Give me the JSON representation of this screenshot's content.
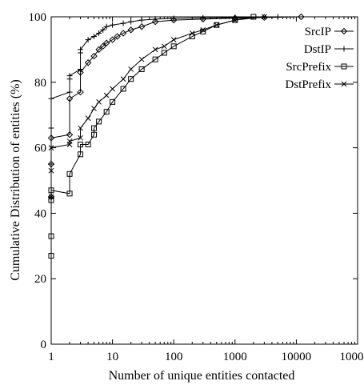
{
  "chart_data": {
    "type": "line",
    "xscale": "log",
    "xlabel": "Number of unique entities contacted",
    "ylabel": "Cumulative Distribution of entities (%)",
    "xlim": [
      1,
      100000
    ],
    "ylim": [
      0,
      100
    ],
    "xticks": [
      1,
      10,
      100,
      1000,
      10000,
      100000
    ],
    "xtick_labels": [
      "1",
      "10",
      "100",
      "1000",
      "10000",
      "100000"
    ],
    "yticks": [
      0,
      20,
      40,
      60,
      80,
      100
    ],
    "ytick_labels": [
      "0",
      "20",
      "40",
      "60",
      "80",
      "100"
    ],
    "grid": false,
    "legend_position": "top-right",
    "series": [
      {
        "name": "SrcIP",
        "marker": "diamond",
        "x": [
          1,
          1,
          1,
          2,
          2,
          3,
          3,
          4,
          5,
          6,
          7,
          8,
          10,
          12,
          15,
          20,
          30,
          50,
          100,
          300,
          1000,
          3000,
          12000
        ],
        "y": [
          45,
          55,
          63,
          64,
          75,
          77,
          83,
          86,
          88,
          90,
          91,
          92,
          93,
          94,
          95,
          96,
          97,
          98.5,
          99,
          99.3,
          99.6,
          99.8,
          100
        ]
      },
      {
        "name": "DstIP",
        "marker": "plus",
        "x": [
          1,
          1,
          1,
          1,
          2,
          2,
          2,
          3,
          3,
          3,
          4,
          5,
          6,
          7,
          8,
          10,
          15,
          20,
          30,
          50,
          100,
          300,
          1000,
          5000
        ],
        "y": [
          45,
          55,
          66,
          75,
          77,
          81,
          82,
          84,
          89,
          90,
          93,
          94,
          95,
          96,
          97,
          97.5,
          98,
          98.5,
          99,
          99.3,
          99.5,
          99.7,
          99.8,
          100
        ]
      },
      {
        "name": "SrcPrefix",
        "marker": "square",
        "x": [
          1,
          1,
          1,
          1,
          2,
          2,
          3,
          3,
          4,
          5,
          5,
          6,
          8,
          10,
          15,
          20,
          30,
          50,
          70,
          100,
          200,
          300,
          500,
          1000,
          2000
        ],
        "y": [
          27,
          33,
          44,
          47,
          46,
          52,
          58,
          61,
          61,
          64,
          66,
          68,
          71,
          74,
          78,
          81,
          84,
          87,
          89,
          91,
          94,
          95.5,
          97.5,
          99,
          100
        ]
      },
      {
        "name": "DstPrefix",
        "marker": "cross",
        "x": [
          1,
          1,
          1,
          2,
          2,
          3,
          3,
          4,
          5,
          6,
          8,
          10,
          15,
          20,
          30,
          50,
          70,
          100,
          200,
          300,
          500,
          1000,
          3000
        ],
        "y": [
          45,
          53,
          60,
          61,
          62,
          63,
          66,
          69,
          72,
          74,
          76,
          78,
          81,
          84,
          87,
          90,
          91,
          93,
          95,
          96,
          97.5,
          99,
          100
        ]
      }
    ]
  }
}
